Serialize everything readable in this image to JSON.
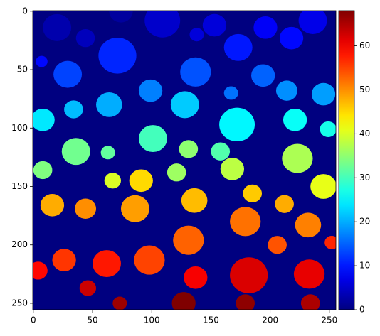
{
  "chart_data": {
    "type": "image",
    "xlim": [
      -0.5,
      255.5
    ],
    "ylim": [
      255.5,
      -0.5
    ],
    "xticks": [
      0,
      50,
      100,
      150,
      200,
      250
    ],
    "yticks": [
      0,
      50,
      100,
      150,
      200,
      250
    ],
    "colormap": "jet",
    "background": 0,
    "colorbar": {
      "clim": [
        0,
        68
      ],
      "ticks": [
        0,
        10,
        20,
        30,
        40,
        50,
        60
      ]
    },
    "blobs": [
      {
        "x": 20,
        "y": 14,
        "r": 12,
        "value": 3
      },
      {
        "x": 44,
        "y": 23,
        "r": 8,
        "value": 4
      },
      {
        "x": 109,
        "y": 8,
        "r": 15,
        "value": 5
      },
      {
        "x": 74,
        "y": 0,
        "r": 10,
        "value": 2
      },
      {
        "x": 138,
        "y": 20,
        "r": 6,
        "value": 6
      },
      {
        "x": 153,
        "y": 12,
        "r": 10,
        "value": 6
      },
      {
        "x": 196,
        "y": 14,
        "r": 10,
        "value": 8
      },
      {
        "x": 218,
        "y": 23,
        "r": 10,
        "value": 9
      },
      {
        "x": 236,
        "y": 8,
        "r": 12,
        "value": 7
      },
      {
        "x": 173,
        "y": 31,
        "r": 12,
        "value": 10
      },
      {
        "x": 7,
        "y": 43,
        "r": 5,
        "value": 9
      },
      {
        "x": 71,
        "y": 38,
        "r": 16,
        "value": 11
      },
      {
        "x": 29,
        "y": 54,
        "r": 12,
        "value": 13
      },
      {
        "x": 137,
        "y": 52,
        "r": 13,
        "value": 14
      },
      {
        "x": 194,
        "y": 55,
        "r": 10,
        "value": 15
      },
      {
        "x": 99,
        "y": 68,
        "r": 10,
        "value": 17
      },
      {
        "x": 167,
        "y": 70,
        "r": 6,
        "value": 16
      },
      {
        "x": 214,
        "y": 68,
        "r": 9,
        "value": 18
      },
      {
        "x": 245,
        "y": 71,
        "r": 10,
        "value": 19
      },
      {
        "x": 64,
        "y": 80,
        "r": 11,
        "value": 20
      },
      {
        "x": 34,
        "y": 84,
        "r": 8,
        "value": 21
      },
      {
        "x": 128,
        "y": 80,
        "r": 12,
        "value": 22
      },
      {
        "x": 8,
        "y": 93,
        "r": 10,
        "value": 24
      },
      {
        "x": 172,
        "y": 97,
        "r": 15,
        "value": 25
      },
      {
        "x": 221,
        "y": 93,
        "r": 10,
        "value": 26
      },
      {
        "x": 249,
        "y": 101,
        "r": 7,
        "value": 27
      },
      {
        "x": 101,
        "y": 109,
        "r": 12,
        "value": 30
      },
      {
        "x": 36,
        "y": 120,
        "r": 12,
        "value": 33
      },
      {
        "x": 63,
        "y": 121,
        "r": 6,
        "value": 32
      },
      {
        "x": 131,
        "y": 118,
        "r": 8,
        "value": 35
      },
      {
        "x": 158,
        "y": 120,
        "r": 8,
        "value": 31
      },
      {
        "x": 223,
        "y": 126,
        "r": 13,
        "value": 37
      },
      {
        "x": 8,
        "y": 136,
        "r": 8,
        "value": 34
      },
      {
        "x": 121,
        "y": 138,
        "r": 8,
        "value": 36
      },
      {
        "x": 168,
        "y": 135,
        "r": 10,
        "value": 38
      },
      {
        "x": 67,
        "y": 145,
        "r": 7,
        "value": 40
      },
      {
        "x": 91,
        "y": 145,
        "r": 10,
        "value": 45
      },
      {
        "x": 245,
        "y": 150,
        "r": 11,
        "value": 41
      },
      {
        "x": 16,
        "y": 166,
        "r": 10,
        "value": 48
      },
      {
        "x": 44,
        "y": 169,
        "r": 9,
        "value": 50
      },
      {
        "x": 86,
        "y": 169,
        "r": 12,
        "value": 49
      },
      {
        "x": 136,
        "y": 162,
        "r": 11,
        "value": 47
      },
      {
        "x": 185,
        "y": 156,
        "r": 8,
        "value": 46
      },
      {
        "x": 212,
        "y": 165,
        "r": 8,
        "value": 48
      },
      {
        "x": 179,
        "y": 180,
        "r": 13,
        "value": 52
      },
      {
        "x": 232,
        "y": 183,
        "r": 11,
        "value": 51
      },
      {
        "x": 131,
        "y": 196,
        "r": 13,
        "value": 53
      },
      {
        "x": 26,
        "y": 213,
        "r": 10,
        "value": 56
      },
      {
        "x": 62,
        "y": 216,
        "r": 12,
        "value": 58
      },
      {
        "x": 98,
        "y": 213,
        "r": 13,
        "value": 55
      },
      {
        "x": 206,
        "y": 200,
        "r": 8,
        "value": 54
      },
      {
        "x": 252,
        "y": 198,
        "r": 6,
        "value": 57
      },
      {
        "x": 4,
        "y": 222,
        "r": 8,
        "value": 59
      },
      {
        "x": 137,
        "y": 228,
        "r": 10,
        "value": 60
      },
      {
        "x": 182,
        "y": 226,
        "r": 16,
        "value": 62
      },
      {
        "x": 233,
        "y": 225,
        "r": 13,
        "value": 61
      },
      {
        "x": 46,
        "y": 237,
        "r": 7,
        "value": 63
      },
      {
        "x": 73,
        "y": 250,
        "r": 6,
        "value": 66
      },
      {
        "x": 127,
        "y": 250,
        "r": 10,
        "value": 68
      },
      {
        "x": 179,
        "y": 250,
        "r": 8,
        "value": 67
      },
      {
        "x": 234,
        "y": 250,
        "r": 8,
        "value": 65
      }
    ]
  }
}
